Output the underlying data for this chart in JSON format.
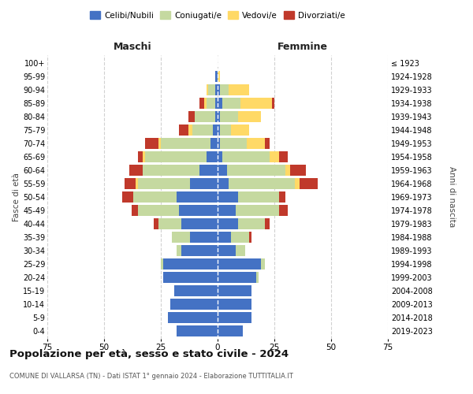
{
  "age_groups": [
    "0-4",
    "5-9",
    "10-14",
    "15-19",
    "20-24",
    "25-29",
    "30-34",
    "35-39",
    "40-44",
    "45-49",
    "50-54",
    "55-59",
    "60-64",
    "65-69",
    "70-74",
    "75-79",
    "80-84",
    "85-89",
    "90-94",
    "95-99",
    "100+"
  ],
  "birth_years": [
    "2019-2023",
    "2014-2018",
    "2009-2013",
    "2004-2008",
    "1999-2003",
    "1994-1998",
    "1989-1993",
    "1984-1988",
    "1979-1983",
    "1974-1978",
    "1969-1973",
    "1964-1968",
    "1959-1963",
    "1954-1958",
    "1949-1953",
    "1944-1948",
    "1939-1943",
    "1934-1938",
    "1929-1933",
    "1924-1928",
    "≤ 1923"
  ],
  "male": {
    "celibi": [
      18,
      22,
      21,
      19,
      24,
      24,
      16,
      12,
      16,
      17,
      18,
      12,
      8,
      5,
      3,
      2,
      1,
      1,
      1,
      1,
      0
    ],
    "coniugati": [
      0,
      0,
      0,
      0,
      0,
      1,
      2,
      8,
      10,
      18,
      19,
      23,
      25,
      27,
      22,
      9,
      9,
      4,
      3,
      0,
      0
    ],
    "vedovi": [
      0,
      0,
      0,
      0,
      0,
      0,
      0,
      0,
      0,
      0,
      0,
      1,
      0,
      1,
      1,
      2,
      0,
      1,
      1,
      0,
      0
    ],
    "divorziati": [
      0,
      0,
      0,
      0,
      0,
      0,
      0,
      0,
      2,
      3,
      5,
      5,
      6,
      2,
      6,
      4,
      3,
      2,
      0,
      0,
      0
    ]
  },
  "female": {
    "nubili": [
      11,
      15,
      15,
      15,
      17,
      19,
      8,
      6,
      9,
      8,
      9,
      5,
      4,
      2,
      1,
      1,
      1,
      2,
      1,
      0,
      0
    ],
    "coniugate": [
      0,
      0,
      0,
      0,
      1,
      2,
      4,
      8,
      12,
      19,
      18,
      29,
      26,
      21,
      12,
      5,
      8,
      8,
      4,
      0,
      0
    ],
    "vedove": [
      0,
      0,
      0,
      0,
      0,
      0,
      0,
      0,
      0,
      0,
      0,
      2,
      2,
      4,
      8,
      8,
      10,
      14,
      9,
      1,
      0
    ],
    "divorziate": [
      0,
      0,
      0,
      0,
      0,
      0,
      0,
      1,
      2,
      4,
      3,
      8,
      7,
      4,
      2,
      0,
      0,
      1,
      0,
      0,
      0
    ]
  },
  "colors": {
    "celibi": "#4472C4",
    "coniugati": "#c5d9a0",
    "vedovi": "#ffd966",
    "divorziati": "#c0392b"
  },
  "xlim": 75,
  "title": "Popolazione per età, sesso e stato civile - 2024",
  "subtitle": "COMUNE DI VALLARSA (TN) - Dati ISTAT 1° gennaio 2024 - Elaborazione TUTTITALIA.IT",
  "ylabel_left": "Fasce di età",
  "ylabel_right": "Anni di nascita",
  "xlabel_left": "Maschi",
  "xlabel_right": "Femmine",
  "legend_labels": [
    "Celibi/Nubili",
    "Coniugati/e",
    "Vedovi/e",
    "Divorziati/e"
  ],
  "background_color": "#ffffff",
  "grid_color": "#cccccc"
}
